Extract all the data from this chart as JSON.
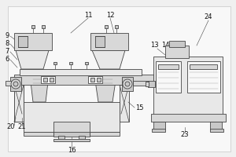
{
  "bg_color": "#f0f0f0",
  "line_color": "#444444",
  "lw": 0.6,
  "fill_light": "#e8e8e8",
  "fill_mid": "#d8d8d8",
  "fill_dark": "#c8c8c8",
  "fill_white": "#f8f8f8"
}
